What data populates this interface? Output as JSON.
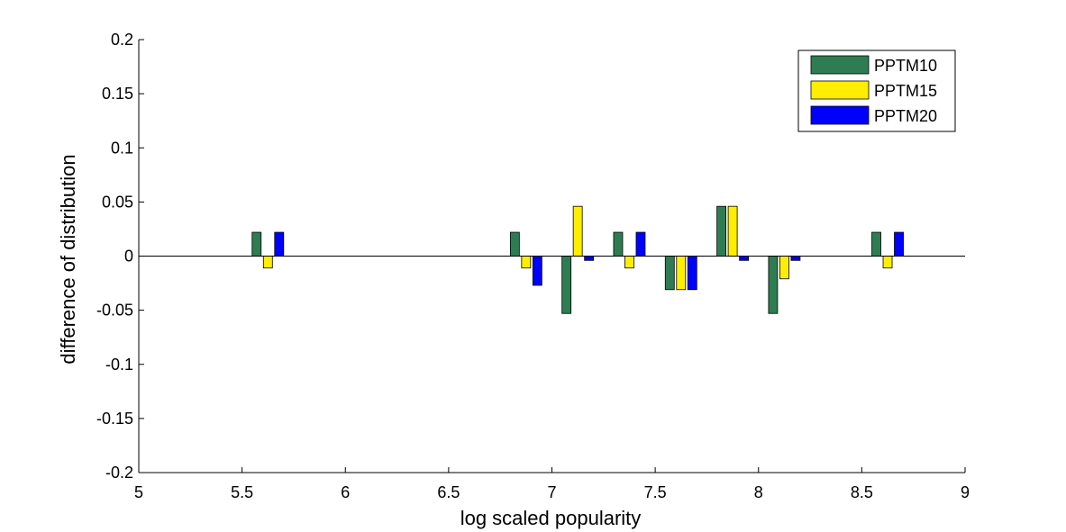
{
  "chart_data": {
    "type": "bar",
    "xlabel": "log scaled popularity",
    "ylabel": "difference of distribution",
    "xlim": [
      5,
      9
    ],
    "ylim": [
      -0.2,
      0.2
    ],
    "xticks": [
      5,
      5.5,
      6,
      6.5,
      7,
      7.5,
      8,
      8.5,
      9
    ],
    "xtick_labels": [
      "5",
      "5.5",
      "6",
      "6.5",
      "7",
      "7.5",
      "8",
      "8.5",
      "9"
    ],
    "yticks": [
      0.2,
      0.15,
      0.1,
      0.05,
      0,
      -0.05,
      -0.1,
      -0.15,
      -0.2
    ],
    "ytick_labels": [
      "0.2",
      "0.15",
      "0.1",
      "0.05",
      "0",
      "-0.05",
      "-0.1",
      "-0.15",
      "-0.2"
    ],
    "legend_position": "top-right",
    "grid": false,
    "x": [
      5.625,
      6.875,
      7.125,
      7.375,
      7.625,
      7.875,
      8.125,
      8.625
    ],
    "series": [
      {
        "name": "PPTM10",
        "color": "#2e7d52",
        "values": [
          0.022,
          0.022,
          -0.053,
          0.022,
          -0.031,
          0.046,
          -0.053,
          0.022
        ]
      },
      {
        "name": "PPTM15",
        "color": "#ffee00",
        "values": [
          -0.011,
          -0.011,
          0.046,
          -0.011,
          -0.031,
          0.046,
          -0.021,
          -0.011
        ]
      },
      {
        "name": "PPTM20",
        "color": "#0000ff",
        "values": [
          0.022,
          -0.027,
          -0.004,
          0.022,
          -0.031,
          -0.004,
          -0.004,
          0.022
        ]
      }
    ]
  }
}
